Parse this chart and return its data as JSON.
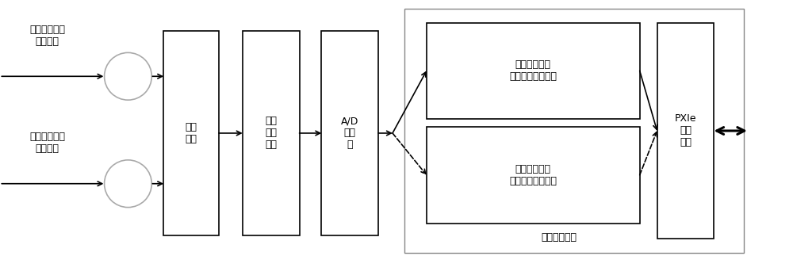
{
  "fig_width": 10.0,
  "fig_height": 3.28,
  "bg_color": "#ffffff",
  "box_edge_color": "#000000",
  "box_face_color": "#ffffff",
  "text_color": "#000000",
  "circle_edge_color": "#aaaaaa",
  "circle_face_color": "#ffffff",
  "font_size_main": 9,
  "label_top_1": "中频数字化仪\n输入端口",
  "label_top_2": "时域数字化仪\n输入端口",
  "box1_label": "端口\n选择",
  "box2_label": "信号\n调理\n电路",
  "box3_label": "A/D\n转换\n器",
  "box4_label": "中频数字化仪\n数字信号处理通道",
  "box5_label": "时域数字化仪\n数字信号处理通道",
  "box6_label": "PXIe\n总线\n接口",
  "big_box_label": "数字处理单元",
  "arrow_color": "#000000"
}
